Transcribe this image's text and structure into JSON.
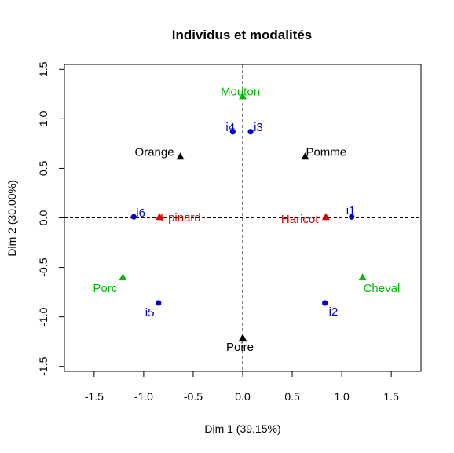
{
  "chart_data": {
    "type": "scatter",
    "title": "Individus et modalités",
    "xlabel": "Dim 1 (39.15%)",
    "ylabel": "Dim 2 (30.00%)",
    "xlim": [
      -1.8,
      1.8
    ],
    "ylim": [
      -1.55,
      1.55
    ],
    "xticks": [
      -1.5,
      -1.0,
      -0.5,
      0.0,
      0.5,
      1.0,
      1.5
    ],
    "xtick_labels": [
      "-1.5",
      "-1.0",
      "-0.5",
      "0.0",
      "0.5",
      "1.0",
      "1.5"
    ],
    "yticks": [
      -1.5,
      -1.0,
      -0.5,
      0.0,
      0.5,
      1.0,
      1.5
    ],
    "ytick_labels": [
      "-1.5",
      "-1.0",
      "-0.5",
      "0.0",
      "0.5",
      "1.0",
      "1.5"
    ],
    "reference_lines": {
      "x": 0,
      "y": 0,
      "style": "dashed"
    },
    "grid": false,
    "series": [
      {
        "color": "#0000cc",
        "marker": "circle",
        "points": [
          {
            "label": "i1",
            "x": 1.1,
            "y": 0.01
          },
          {
            "label": "i2",
            "x": 0.83,
            "y": -0.86
          },
          {
            "label": "i3",
            "x": 0.08,
            "y": 0.87
          },
          {
            "label": "i4",
            "x": -0.1,
            "y": 0.87
          },
          {
            "label": "i5",
            "x": -0.85,
            "y": -0.86
          },
          {
            "label": "i6",
            "x": -1.1,
            "y": 0.01
          }
        ]
      },
      {
        "color": "#000000",
        "marker": "triangle",
        "points": [
          {
            "label": "Orange",
            "x": -0.63,
            "y": 0.62
          },
          {
            "label": "Pomme",
            "x": 0.63,
            "y": 0.62
          },
          {
            "label": "Poire",
            "x": 0.0,
            "y": -1.21
          }
        ]
      },
      {
        "color": "#00bb00",
        "marker": "triangle",
        "points": [
          {
            "label": "Mouton",
            "x": 0.0,
            "y": 1.23
          },
          {
            "label": "Porc",
            "x": -1.21,
            "y": -0.6
          },
          {
            "label": "Cheval",
            "x": 1.21,
            "y": -0.6
          }
        ]
      },
      {
        "color": "#dd0000",
        "marker": "triangle",
        "points": [
          {
            "label": "Epinard",
            "x": -0.84,
            "y": 0.01
          },
          {
            "label": "Haricot",
            "x": 0.84,
            "y": 0.01
          }
        ]
      }
    ]
  }
}
